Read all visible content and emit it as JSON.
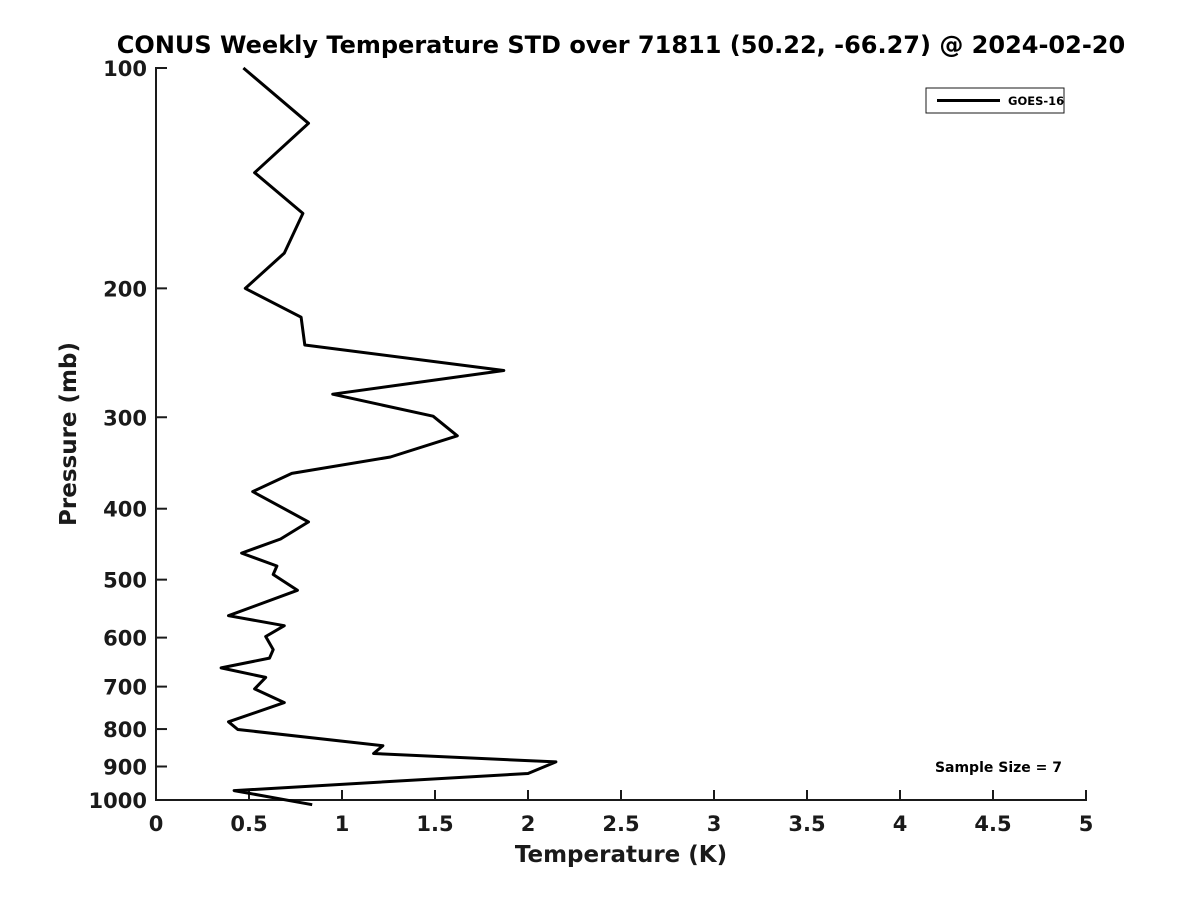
{
  "colors": {
    "background": "#ffffff",
    "axis": "#1a1a1a",
    "line": "#000000",
    "text": "#000000"
  },
  "chart_data": {
    "type": "line",
    "title": "CONUS Weekly Temperature STD over 71811 (50.22, -66.27) @ 2024-02-20",
    "xlabel": "Temperature (K)",
    "ylabel": "Pressure (mb)",
    "xlim": [
      0,
      5
    ],
    "ylim": [
      100,
      1000
    ],
    "y_scale": "log",
    "y_reversed": true,
    "grid": false,
    "x_ticks": [
      0,
      0.5,
      1,
      1.5,
      2,
      2.5,
      3,
      3.5,
      4,
      4.5,
      5
    ],
    "x_tick_labels": [
      "0",
      "0.5",
      "1",
      "1.5",
      "2",
      "2.5",
      "3",
      "3.5",
      "4",
      "4.5",
      "5"
    ],
    "y_ticks": [
      100,
      200,
      300,
      400,
      500,
      600,
      700,
      800,
      900,
      1000
    ],
    "y_tick_labels": [
      "100",
      "200",
      "300",
      "400",
      "500",
      "600",
      "700",
      "800",
      "900",
      "1000"
    ],
    "legend": {
      "position": "top-right",
      "entries": [
        {
          "label": "GOES-16",
          "color": "#000000",
          "line_width": 3
        }
      ]
    },
    "annotation": {
      "text": "Sample Size = 7",
      "value": 7,
      "position": "bottom-right"
    },
    "series": [
      {
        "name": "GOES-16",
        "color": "#000000",
        "line_width": 3,
        "x_name": "temperature_std_K",
        "y_name": "pressure_mb",
        "points": [
          [
            0.47,
            100
          ],
          [
            0.82,
            119
          ],
          [
            0.53,
            139
          ],
          [
            0.79,
            158
          ],
          [
            0.69,
            179
          ],
          [
            0.48,
            200
          ],
          [
            0.78,
            219
          ],
          [
            0.8,
            239
          ],
          [
            1.87,
            259
          ],
          [
            0.95,
            279
          ],
          [
            1.49,
            299
          ],
          [
            1.62,
            318
          ],
          [
            1.26,
            340
          ],
          [
            0.73,
            358
          ],
          [
            0.52,
            379
          ],
          [
            0.82,
            417
          ],
          [
            0.67,
            440
          ],
          [
            0.46,
            460
          ],
          [
            0.65,
            479
          ],
          [
            0.63,
            492
          ],
          [
            0.76,
            517
          ],
          [
            0.39,
            560
          ],
          [
            0.69,
            578
          ],
          [
            0.59,
            598
          ],
          [
            0.63,
            623
          ],
          [
            0.61,
            640
          ],
          [
            0.35,
            660
          ],
          [
            0.59,
            680
          ],
          [
            0.53,
            705
          ],
          [
            0.69,
            736
          ],
          [
            0.39,
            782
          ],
          [
            0.44,
            801
          ],
          [
            1.22,
            843
          ],
          [
            1.17,
            864
          ],
          [
            2.15,
            887
          ],
          [
            2.0,
            920
          ],
          [
            0.42,
            971
          ],
          [
            0.84,
            1015
          ]
        ]
      }
    ]
  }
}
